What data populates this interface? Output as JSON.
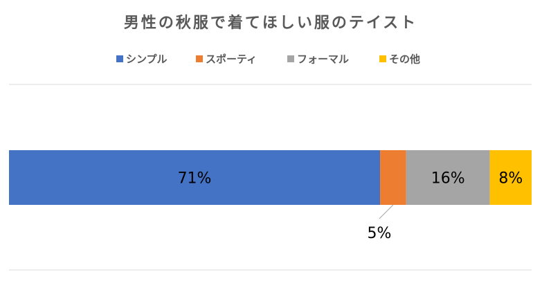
{
  "chart_data": {
    "type": "stacked-bar-horizontal",
    "title": "男性の秋服で着てほしい服のテイスト",
    "xlim": [
      0,
      100
    ],
    "legend": "top",
    "series": [
      {
        "name": "シンプル",
        "color": "#4472c4",
        "values": [
          71
        ],
        "value_labels": [
          "71%"
        ]
      },
      {
        "name": "スポーティ",
        "color": "#ed7d31",
        "values": [
          5
        ],
        "value_labels": [
          "5%"
        ]
      },
      {
        "name": "フォーマル",
        "color": "#a5a5a5",
        "values": [
          16
        ],
        "value_labels": [
          "16%"
        ]
      },
      {
        "name": "その他",
        "color": "#ffc000",
        "values": [
          8
        ],
        "value_labels": [
          "8%"
        ]
      }
    ]
  }
}
